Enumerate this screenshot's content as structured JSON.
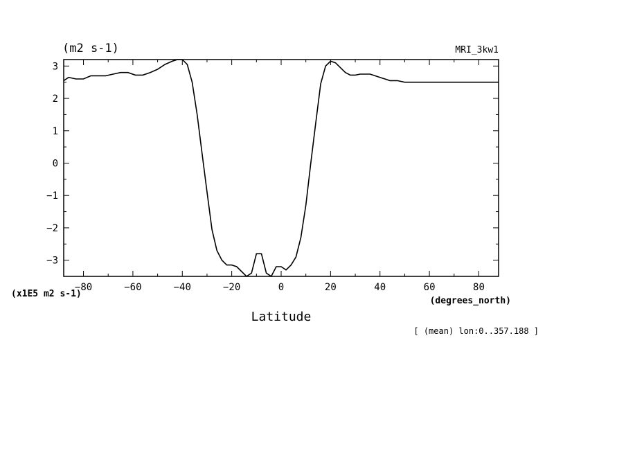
{
  "chart_data": {
    "type": "line",
    "units_label": "(m2 s-1)",
    "model_label": "MRI_3kw1",
    "scale_label": "(x1E5 m2 s-1)",
    "x_units_label": "(degrees_north)",
    "xlabel": "Latitude",
    "subset_label": "[ (mean) lon:0..357.188 ]",
    "xlim": [
      -88,
      88
    ],
    "ylim": [
      -3.5,
      3.2
    ],
    "x_ticks": [
      -80,
      -60,
      -40,
      -20,
      0,
      20,
      40,
      60,
      80
    ],
    "x_tick_labels": [
      "-80",
      "-60",
      "-40",
      "-20",
      "0",
      "20",
      "40",
      "60",
      "80"
    ],
    "y_ticks": [
      3,
      2,
      1,
      0,
      -1,
      -2,
      -3
    ],
    "y_tick_labels": [
      "3",
      "2",
      "1",
      "0",
      "-1",
      "-2",
      "-3"
    ],
    "series": [
      {
        "x": [
          -88,
          -86,
          -83,
          -80,
          -77,
          -74,
          -71,
          -68,
          -65,
          -62,
          -59,
          -56,
          -53,
          -50,
          -47,
          -44,
          -42,
          -40,
          -38,
          -36,
          -34,
          -32,
          -30,
          -28,
          -26,
          -24,
          -22,
          -20,
          -18,
          -16,
          -14,
          -12,
          -10,
          -8,
          -6,
          -4,
          -2,
          0,
          2,
          4,
          6,
          8,
          10,
          12,
          14,
          16,
          18,
          20,
          22,
          24,
          26,
          28,
          30,
          32,
          34,
          36,
          38,
          40,
          42,
          44,
          47,
          50,
          53,
          56,
          59,
          62,
          65,
          68,
          71,
          74,
          77,
          80,
          83,
          86,
          88
        ],
        "y": [
          2.55,
          2.65,
          2.6,
          2.6,
          2.7,
          2.7,
          2.7,
          2.75,
          2.8,
          2.8,
          2.72,
          2.72,
          2.8,
          2.9,
          3.05,
          3.15,
          3.2,
          3.2,
          3.05,
          2.5,
          1.5,
          0.3,
          -0.9,
          -2.05,
          -2.7,
          -3.0,
          -3.15,
          -3.15,
          -3.2,
          -3.35,
          -3.5,
          -3.4,
          -2.8,
          -2.8,
          -3.4,
          -3.5,
          -3.2,
          -3.2,
          -3.3,
          -3.15,
          -2.9,
          -2.3,
          -1.3,
          0.0,
          1.25,
          2.45,
          3.0,
          3.15,
          3.1,
          2.95,
          2.8,
          2.72,
          2.72,
          2.75,
          2.75,
          2.75,
          2.7,
          2.65,
          2.6,
          2.55,
          2.55,
          2.5,
          2.5,
          2.5,
          2.5,
          2.5,
          2.5,
          2.5,
          2.5,
          2.5,
          2.5,
          2.5,
          2.5,
          2.5,
          2.5
        ]
      }
    ]
  }
}
